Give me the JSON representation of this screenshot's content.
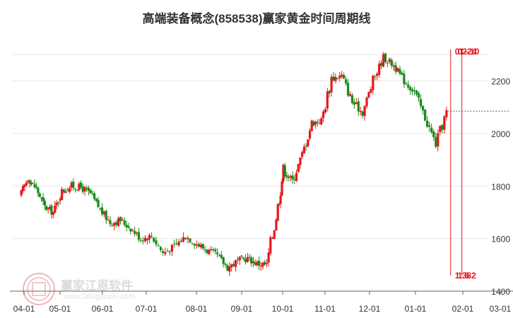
{
  "title": "高端装备概念(858538)赢家黄金时间周期线",
  "watermark": {
    "name": "赢家江恩软件",
    "url": "www.360ganzhi.com"
  },
  "colors": {
    "up": "#e8171c",
    "down": "#1a8a1a",
    "cycle_line": "#e8171c",
    "price_line": "#1a8a1a",
    "grid": "#e6e6e6"
  },
  "chart_data": {
    "type": "candlestick",
    "title": "高端装备概念(858538)赢家黄金时间周期线",
    "x_ticks": [
      "04-01",
      "05-01",
      "06-01",
      "07-01",
      "08-01",
      "09-01",
      "10-01",
      "11-01",
      "12-01",
      "01-01",
      "02-01",
      "03-01"
    ],
    "y_ticks": [
      1400,
      1600,
      1800,
      2000,
      2200
    ],
    "ylim": [
      1400,
      2360
    ],
    "grid": "horizontal",
    "cycle_lines": [
      {
        "label": "01-24",
        "date": "01-24"
      },
      {
        "label": "02-10",
        "date": "02-10"
      }
    ],
    "annotations": [
      {
        "text": "01-24",
        "position": "top"
      },
      {
        "text": "02-10",
        "position": "top"
      },
      {
        "text": "1.382",
        "position": "bottom"
      },
      {
        "text": "1.5",
        "position": "bottom"
      }
    ],
    "last_price": 2085,
    "series": [
      {
        "key": "close",
        "points": [
          [
            "03-29",
            1760
          ],
          [
            "04-05",
            1830
          ],
          [
            "04-12",
            1790
          ],
          [
            "04-19",
            1720
          ],
          [
            "04-26",
            1700
          ],
          [
            "05-03",
            1780
          ],
          [
            "05-10",
            1800
          ],
          [
            "05-17",
            1795
          ],
          [
            "05-24",
            1770
          ],
          [
            "05-31",
            1710
          ],
          [
            "06-07",
            1660
          ],
          [
            "06-14",
            1670
          ],
          [
            "06-21",
            1640
          ],
          [
            "06-28",
            1600
          ],
          [
            "07-05",
            1610
          ],
          [
            "07-12",
            1545
          ],
          [
            "07-19",
            1570
          ],
          [
            "07-26",
            1610
          ],
          [
            "08-02",
            1580
          ],
          [
            "08-09",
            1555
          ],
          [
            "08-16",
            1535
          ],
          [
            "08-23",
            1490
          ],
          [
            "08-30",
            1515
          ],
          [
            "09-06",
            1525
          ],
          [
            "09-13",
            1505
          ],
          [
            "09-20",
            1500
          ],
          [
            "09-27",
            1690
          ],
          [
            "10-02",
            1860
          ],
          [
            "10-09",
            1820
          ],
          [
            "10-16",
            1920
          ],
          [
            "10-23",
            2040
          ],
          [
            "10-30",
            2050
          ],
          [
            "11-06",
            2210
          ],
          [
            "11-13",
            2220
          ],
          [
            "11-20",
            2120
          ],
          [
            "11-27",
            2080
          ],
          [
            "12-04",
            2200
          ],
          [
            "12-11",
            2290
          ],
          [
            "12-18",
            2260
          ],
          [
            "12-25",
            2200
          ],
          [
            "01-01",
            2160
          ],
          [
            "01-08",
            2060
          ],
          [
            "01-15",
            1960
          ],
          [
            "01-22",
            2080
          ]
        ]
      }
    ]
  }
}
